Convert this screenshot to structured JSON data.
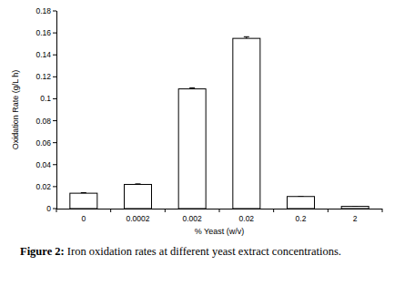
{
  "chart_data": {
    "type": "bar",
    "x_label": "% Yeast (w/v)",
    "y_label": "Oxidation Rate (g/L h)",
    "categories": [
      "0",
      "0.0002",
      "0.002",
      "0.02",
      "0.2",
      "2"
    ],
    "values": [
      0.014,
      0.022,
      0.109,
      0.155,
      0.011,
      0.002
    ],
    "errors": [
      0.0005,
      0.0005,
      0.001,
      0.0015,
      0,
      0
    ],
    "color": "#ffffff",
    "ylim": [
      0,
      0.18
    ],
    "yticks": [
      0,
      0.02,
      0.04,
      0.06,
      0.08,
      0.1,
      0.12,
      0.14,
      0.16,
      0.18
    ],
    "grid": false,
    "caption": [
      "Figure 2:",
      "Iron oxidation rates at different yeast extract concentrations."
    ]
  }
}
